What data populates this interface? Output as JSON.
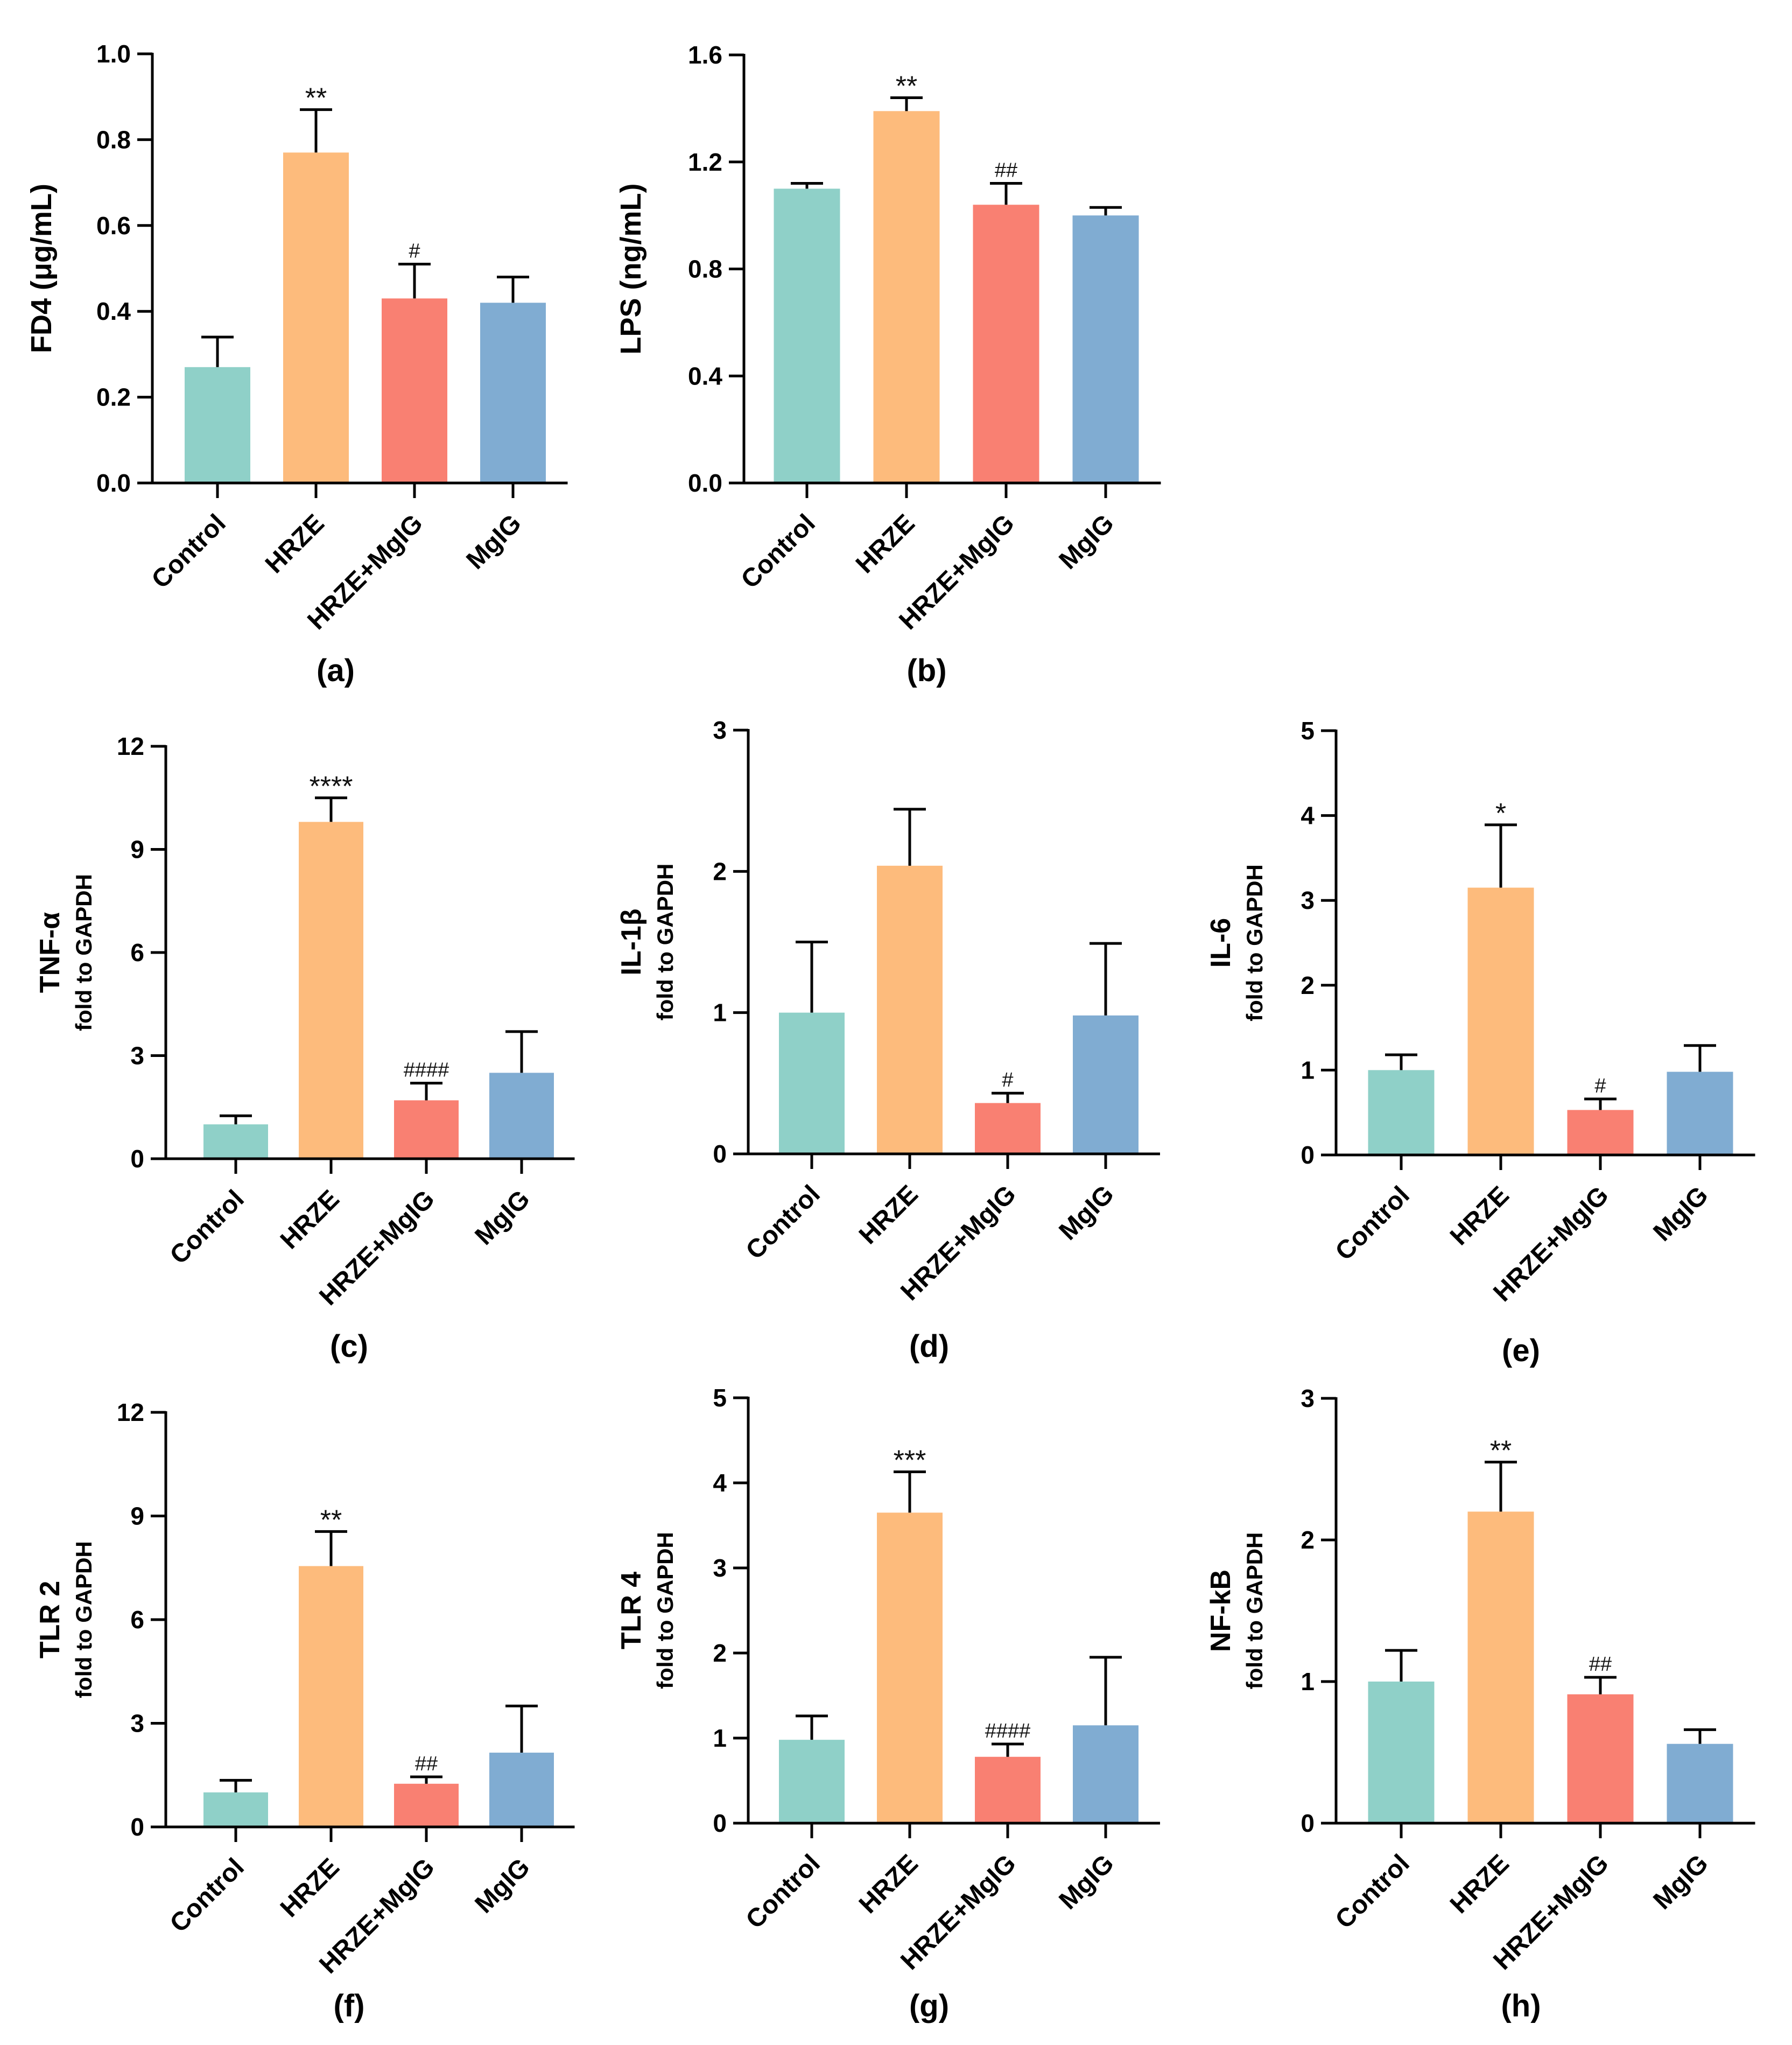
{
  "figure": {
    "colors": {
      "Control": "#8fd0c8",
      "HRZE": "#fdbb7c",
      "HRZE+MgIG": "#f98072",
      "MgIG": "#80acd2",
      "axis": "#000000"
    }
  },
  "chart_data": [
    {
      "id": "a",
      "type": "bar",
      "panel_label": "(a)",
      "ylabel": "FD4 (μg/mL)",
      "ylabel2": "",
      "ylim": [
        0,
        1.0
      ],
      "ticks": [
        0.0,
        0.2,
        0.4,
        0.6,
        0.8,
        1.0
      ],
      "tick_labels": [
        "0.0",
        "0.2",
        "0.4",
        "0.6",
        "0.8",
        "1.0"
      ],
      "categories": [
        "Control",
        "HRZE",
        "HRZE+MgIG",
        "MgIG"
      ],
      "values": [
        0.27,
        0.77,
        0.43,
        0.42
      ],
      "errors": [
        0.07,
        0.1,
        0.08,
        0.06
      ],
      "annotations": [
        "",
        "**",
        "#",
        ""
      ]
    },
    {
      "id": "b",
      "type": "bar",
      "panel_label": "(b)",
      "ylabel": "LPS (ng/mL)",
      "ylabel2": "",
      "ylim": [
        0,
        1.6
      ],
      "ticks": [
        0.0,
        0.4,
        0.8,
        1.2,
        1.6
      ],
      "tick_labels": [
        "0.0",
        "0.4",
        "0.8",
        "1.2",
        "1.6"
      ],
      "categories": [
        "Control",
        "HRZE",
        "HRZE+MgIG",
        "MgIG"
      ],
      "values": [
        1.1,
        1.39,
        1.04,
        1.0
      ],
      "errors": [
        0.02,
        0.05,
        0.08,
        0.03
      ],
      "annotations": [
        "",
        "**",
        "##",
        ""
      ]
    },
    {
      "id": "c",
      "type": "bar",
      "panel_label": "(c)",
      "ylabel": "TNF-α",
      "ylabel2": "fold to GAPDH",
      "ylim": [
        0,
        12
      ],
      "ticks": [
        0,
        3,
        6,
        9,
        12
      ],
      "tick_labels": [
        "0",
        "3",
        "6",
        "9",
        "12"
      ],
      "categories": [
        "Control",
        "HRZE",
        "HRZE+MgIG",
        "MgIG"
      ],
      "values": [
        1.0,
        9.8,
        1.7,
        2.5
      ],
      "errors": [
        0.25,
        0.7,
        0.5,
        1.2
      ],
      "annotations": [
        "",
        "****",
        "####",
        ""
      ]
    },
    {
      "id": "d",
      "type": "bar",
      "panel_label": "(d)",
      "ylabel": "IL-1β",
      "ylabel2": "fold to GAPDH",
      "ylim": [
        0,
        3
      ],
      "ticks": [
        0,
        1,
        2,
        3
      ],
      "tick_labels": [
        "0",
        "1",
        "2",
        "3"
      ],
      "categories": [
        "Control",
        "HRZE",
        "HRZE+MgIG",
        "MgIG"
      ],
      "values": [
        1.0,
        2.04,
        0.36,
        0.98
      ],
      "errors": [
        0.5,
        0.4,
        0.07,
        0.51
      ],
      "annotations": [
        "",
        "",
        "#",
        ""
      ]
    },
    {
      "id": "e",
      "type": "bar",
      "panel_label": "(e)",
      "ylabel": "IL-6",
      "ylabel2": "fold to GAPDH",
      "ylim": [
        0,
        5
      ],
      "ticks": [
        0,
        1,
        2,
        3,
        4,
        5
      ],
      "tick_labels": [
        "0",
        "1",
        "2",
        "3",
        "4",
        "5"
      ],
      "categories": [
        "Control",
        "HRZE",
        "HRZE+MgIG",
        "MgIG"
      ],
      "values": [
        1.0,
        3.15,
        0.53,
        0.98
      ],
      "errors": [
        0.18,
        0.74,
        0.13,
        0.31
      ],
      "annotations": [
        "",
        "*",
        "#",
        ""
      ]
    },
    {
      "id": "f",
      "type": "bar",
      "panel_label": "(f)",
      "ylabel": "TLR 2",
      "ylabel2": "fold to GAPDH",
      "ylim": [
        0,
        12
      ],
      "ticks": [
        0,
        3,
        6,
        9,
        12
      ],
      "tick_labels": [
        "0",
        "3",
        "6",
        "9",
        "12"
      ],
      "categories": [
        "Control",
        "HRZE",
        "HRZE+MgIG",
        "MgIG"
      ],
      "values": [
        1.0,
        7.55,
        1.25,
        2.15
      ],
      "errors": [
        0.35,
        1.0,
        0.2,
        1.35
      ],
      "annotations": [
        "",
        "**",
        "##",
        ""
      ]
    },
    {
      "id": "g",
      "type": "bar",
      "panel_label": "(g)",
      "ylabel": "TLR 4",
      "ylabel2": "fold to GAPDH",
      "ylim": [
        0,
        5
      ],
      "ticks": [
        0,
        1,
        2,
        3,
        4,
        5
      ],
      "tick_labels": [
        "0",
        "1",
        "2",
        "3",
        "4",
        "5"
      ],
      "categories": [
        "Control",
        "HRZE",
        "HRZE+MgIG",
        "MgIG"
      ],
      "values": [
        0.98,
        3.65,
        0.78,
        1.15
      ],
      "errors": [
        0.28,
        0.48,
        0.15,
        0.8
      ],
      "annotations": [
        "",
        "***",
        "####",
        ""
      ]
    },
    {
      "id": "h",
      "type": "bar",
      "panel_label": "(h)",
      "ylabel": "NF-kB",
      "ylabel2": "fold to GAPDH",
      "ylim": [
        0,
        3
      ],
      "ticks": [
        0,
        1,
        2,
        3
      ],
      "tick_labels": [
        "0",
        "1",
        "2",
        "3"
      ],
      "categories": [
        "Control",
        "HRZE",
        "HRZE+MgIG",
        "MgIG"
      ],
      "values": [
        1.0,
        2.2,
        0.91,
        0.56
      ],
      "errors": [
        0.22,
        0.35,
        0.12,
        0.1
      ],
      "annotations": [
        "",
        "**",
        "##",
        ""
      ]
    }
  ]
}
